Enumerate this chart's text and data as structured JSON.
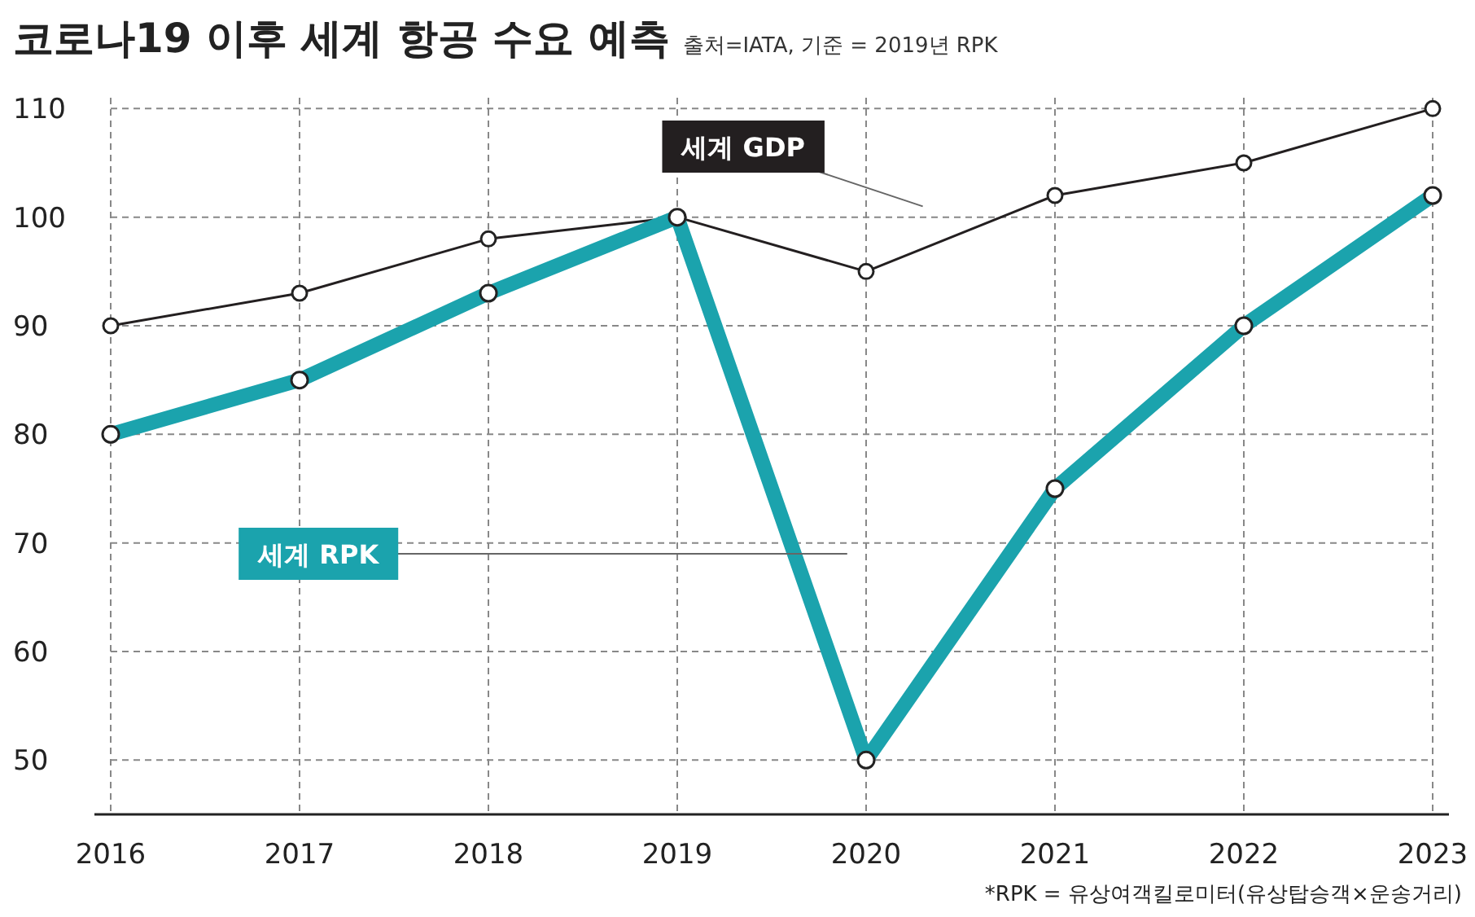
{
  "chart_data": {
    "type": "line",
    "title": "코로나19 이후 세계 항공 수요 예측",
    "subtitle": "출처=IATA, 기준 = 2019년 RPK",
    "annotations": [
      "*RPK = 유상여객킬로미터(유상탑승객×운송거리)"
    ],
    "categories": [
      "2016",
      "2017",
      "2018",
      "2019",
      "2020",
      "2021",
      "2022",
      "2023"
    ],
    "series": [
      {
        "name": "세계 GDP",
        "color": "#231f20",
        "values": [
          90,
          93,
          98,
          100,
          95,
          102,
          105,
          110
        ]
      },
      {
        "name": "세계 RPK",
        "color": "#1ba3ad",
        "values": [
          80,
          85,
          93,
          100,
          50,
          75,
          90,
          102
        ]
      }
    ],
    "ylim": [
      45,
      111
    ],
    "yticks": [
      50,
      60,
      70,
      80,
      90,
      100,
      110
    ],
    "grid": true,
    "legend": false,
    "marker": "circle",
    "line_style": "solid"
  }
}
